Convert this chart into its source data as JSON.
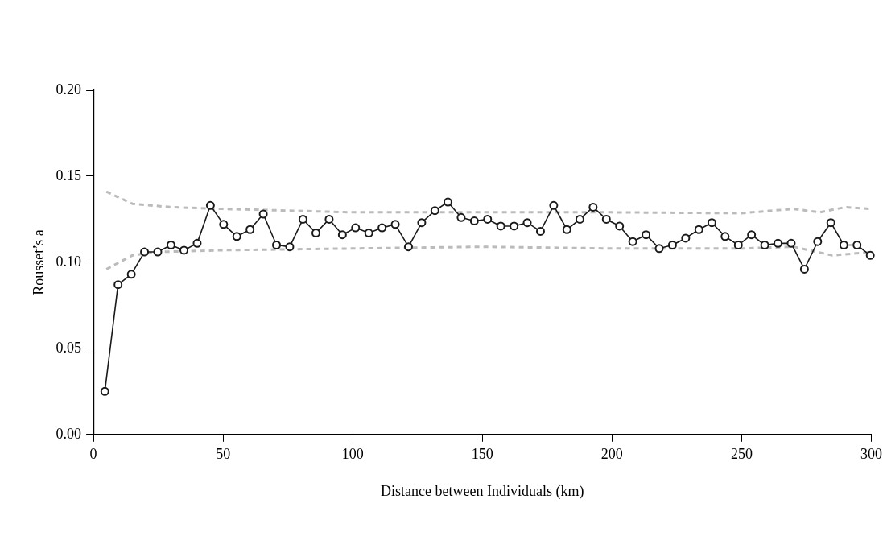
{
  "chart_data": {
    "type": "line",
    "xlabel": "Distance between Individuals (km)",
    "ylabel": "Rousset’s a",
    "xlim": [
      0,
      300
    ],
    "ylim": [
      0,
      0.2
    ],
    "xticks": [
      0,
      50,
      100,
      150,
      200,
      250,
      300
    ],
    "yticks": [
      {
        "value": 0,
        "label": "0.00"
      },
      {
        "value": 0.05,
        "label": "0.05"
      },
      {
        "value": 0.1,
        "label": "0.10"
      },
      {
        "value": 0.15,
        "label": "0.15"
      },
      {
        "value": 0.2,
        "label": "0.20"
      }
    ],
    "grid": false,
    "series": [
      {
        "color": "#bbbbbb",
        "line_style": "dashed",
        "marker": "none",
        "x": [
          5,
          15,
          30,
          50,
          100,
          150,
          200,
          250,
          270,
          280,
          290,
          300
        ],
        "values": [
          0.141,
          0.134,
          0.132,
          0.131,
          0.129,
          0.129,
          0.129,
          0.1285,
          0.131,
          0.129,
          0.132,
          0.131
        ]
      },
      {
        "color": "#bbbbbb",
        "line_style": "dashed",
        "marker": "none",
        "x": [
          5,
          15,
          25,
          50,
          100,
          150,
          200,
          250,
          270,
          285,
          300
        ],
        "values": [
          0.096,
          0.104,
          0.106,
          0.107,
          0.108,
          0.109,
          0.108,
          0.108,
          0.109,
          0.104,
          0.106
        ]
      },
      {
        "color": "#1a1a1a",
        "line_style": "solid",
        "marker": "circle",
        "x": [
          4.4,
          9.5,
          14.6,
          19.7,
          24.8,
          29.9,
          34.9,
          40.0,
          45.1,
          50.2,
          55.3,
          60.4,
          65.5,
          70.6,
          75.7,
          80.8,
          85.8,
          90.9,
          96.0,
          101.1,
          106.2,
          111.3,
          116.4,
          121.5,
          126.6,
          131.7,
          136.7,
          141.8,
          146.9,
          152.0,
          157.1,
          162.2,
          167.3,
          172.4,
          177.5,
          182.6,
          187.6,
          192.7,
          197.8,
          202.9,
          208.0,
          213.1,
          218.2,
          223.3,
          228.4,
          233.5,
          238.5,
          243.6,
          248.7,
          253.8,
          258.9,
          264.0,
          269.1,
          274.2,
          279.3,
          284.4,
          289.4,
          294.5,
          299.6
        ],
        "values": [
          0.025,
          0.087,
          0.093,
          0.106,
          0.106,
          0.11,
          0.107,
          0.111,
          0.133,
          0.122,
          0.115,
          0.119,
          0.128,
          0.11,
          0.109,
          0.125,
          0.117,
          0.125,
          0.116,
          0.12,
          0.117,
          0.12,
          0.122,
          0.109,
          0.123,
          0.13,
          0.135,
          0.126,
          0.124,
          0.125,
          0.121,
          0.121,
          0.123,
          0.118,
          0.133,
          0.119,
          0.125,
          0.132,
          0.125,
          0.121,
          0.112,
          0.116,
          0.108,
          0.11,
          0.114,
          0.119,
          0.123,
          0.115,
          0.11,
          0.116,
          0.11,
          0.111,
          0.111,
          0.096,
          0.112,
          0.123,
          0.11,
          0.11,
          0.104
        ]
      }
    ]
  }
}
